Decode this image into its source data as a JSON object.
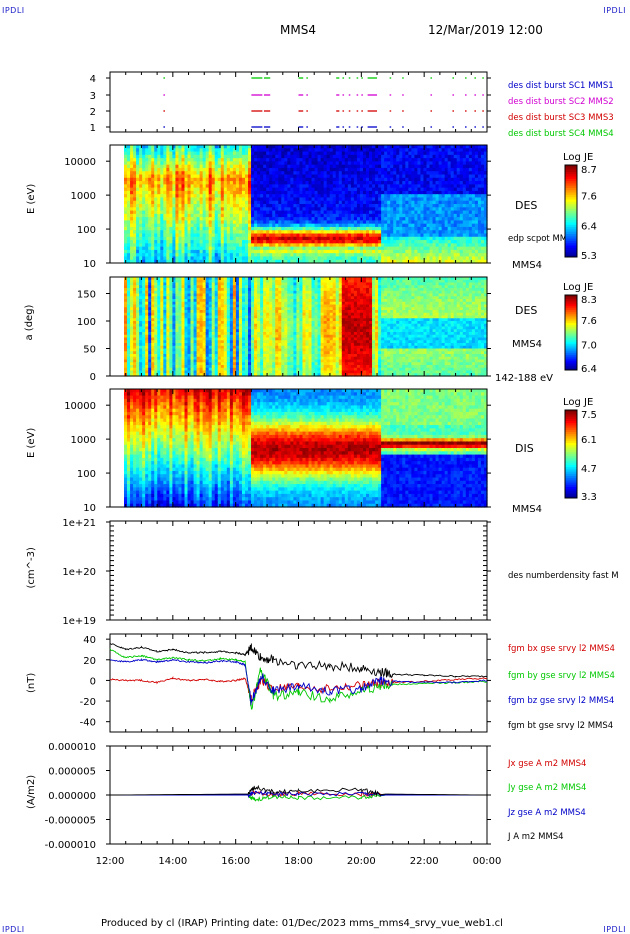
{
  "corners": {
    "tl": "IPDLI",
    "tr": "IPDLI",
    "bl": "IPDLI",
    "br": "IPDLI"
  },
  "header": {
    "spacecraft": "MMS4",
    "datetime": "12/Mar/2019 12:00"
  },
  "footer": "Produced by cl (IRAP)   Printing date: 01/Dec/2023   mms_mms4_srvy_vue_web1.cl",
  "colors": {
    "blue": "#0000c8",
    "magenta": "#d200d2",
    "red": "#d20000",
    "green": "#00c800",
    "black": "#000000"
  },
  "chart_data": [
    {
      "type": "table",
      "name": "burst-availability",
      "y_ticks": [
        "1",
        "2",
        "3",
        "4"
      ],
      "legend": [
        "des dist burst SC1 MMS1",
        "des dist burst SC2 MMS2",
        "des dist burst SC3 MMS3",
        "des dist burst SC4 MMS4"
      ],
      "legend_colors": [
        "#0000c8",
        "#d200d2",
        "#d20000",
        "#00c800"
      ],
      "burst_intervals_hours": [
        [
          13.7,
          13.75
        ],
        [
          16.5,
          16.85
        ],
        [
          16.9,
          17.1
        ],
        [
          18.0,
          18.15
        ],
        [
          18.25,
          18.3
        ],
        [
          19.2,
          19.3
        ],
        [
          19.4,
          19.45
        ],
        [
          19.6,
          19.65
        ],
        [
          19.85,
          19.9
        ],
        [
          20.0,
          20.05
        ],
        [
          20.2,
          20.5
        ],
        [
          20.9,
          20.95
        ],
        [
          21.3,
          21.35
        ],
        [
          22.2,
          22.25
        ],
        [
          22.9,
          22.95
        ],
        [
          23.3,
          23.35
        ],
        [
          23.6,
          23.65
        ],
        [
          23.85,
          23.9
        ]
      ]
    },
    {
      "type": "heatmap",
      "name": "des-energy-spectrogram",
      "ylabel": "E (eV)",
      "y_scale": "log",
      "ylim": [
        10,
        30000
      ],
      "y_ticks": [
        "10",
        "100",
        "1000",
        "10000"
      ],
      "right_label": "DES",
      "right_note": "edp scpot MMS4",
      "bottom_right": "MMS4",
      "colorbar": {
        "title": "Log JE",
        "max": "8.7",
        "ticks": [
          "7.6",
          "6.4"
        ],
        "min": "5.3"
      }
    },
    {
      "type": "heatmap",
      "name": "des-pitch-angle",
      "ylabel": "a (deg)",
      "ylim": [
        0,
        180
      ],
      "y_ticks": [
        "0",
        "50",
        "100",
        "150"
      ],
      "right_label": "DES",
      "right_sc": "MMS4",
      "energy_range": "142-188 eV",
      "colorbar": {
        "title": "Log JE",
        "max": "8.3",
        "ticks": [
          "7.6",
          "7.0"
        ],
        "min": "6.4"
      }
    },
    {
      "type": "heatmap",
      "name": "dis-energy-spectrogram",
      "ylabel": "E (eV)",
      "y_scale": "log",
      "ylim": [
        10,
        30000
      ],
      "y_ticks": [
        "10",
        "100",
        "1000",
        "10000"
      ],
      "right_label": "DIS",
      "bottom_right": "MMS4",
      "colorbar": {
        "title": "Log JE",
        "max": "7.5",
        "ticks": [
          "6.1",
          "4.7"
        ],
        "min": "3.3"
      }
    },
    {
      "type": "line",
      "name": "number-density",
      "ylabel": "(cm^-3)",
      "y_scale": "log",
      "y_ticks": [
        "1e+19",
        "1e+20",
        "1e+21"
      ],
      "series_labels": [
        "des numberdensity fast M"
      ]
    },
    {
      "type": "line",
      "name": "magnetic-field",
      "ylabel": "(nT)",
      "ylim": [
        -50,
        45
      ],
      "y_ticks": [
        "-40",
        "-20",
        "0",
        "20",
        "40"
      ],
      "series": [
        {
          "name": "fgm bx gse srvy l2 MMS4",
          "color": "#d20000",
          "values": [
            [
              12.0,
              1
            ],
            [
              12.5,
              0
            ],
            [
              13.0,
              0
            ],
            [
              13.5,
              -2
            ],
            [
              14.0,
              2
            ],
            [
              14.5,
              0
            ],
            [
              15.0,
              1
            ],
            [
              15.5,
              -1
            ],
            [
              16.0,
              0
            ],
            [
              16.3,
              2
            ],
            [
              16.5,
              -18
            ],
            [
              16.8,
              0
            ],
            [
              17.2,
              -8
            ],
            [
              18.0,
              -6
            ],
            [
              19.0,
              -8
            ],
            [
              20.0,
              -5
            ],
            [
              20.6,
              -3
            ],
            [
              21.0,
              -2
            ],
            [
              22.0,
              -1
            ],
            [
              23.0,
              1
            ],
            [
              24.0,
              2
            ]
          ]
        },
        {
          "name": "fgm by gse srvy l2 MMS4",
          "color": "#00c800",
          "values": [
            [
              12.0,
              30
            ],
            [
              12.5,
              22
            ],
            [
              13.0,
              24
            ],
            [
              13.5,
              20
            ],
            [
              14.0,
              22
            ],
            [
              14.5,
              20
            ],
            [
              15.0,
              19
            ],
            [
              15.5,
              21
            ],
            [
              16.0,
              20
            ],
            [
              16.3,
              18
            ],
            [
              16.5,
              -28
            ],
            [
              16.8,
              10
            ],
            [
              17.2,
              -15
            ],
            [
              18.0,
              -12
            ],
            [
              19.0,
              -18
            ],
            [
              20.0,
              -10
            ],
            [
              20.6,
              -6
            ],
            [
              21.0,
              -4
            ],
            [
              22.0,
              -3
            ],
            [
              23.0,
              -2
            ],
            [
              24.0,
              -1
            ]
          ]
        },
        {
          "name": "fgm bz gse srvy l2 MMS4",
          "color": "#0000c8",
          "values": [
            [
              12.0,
              20
            ],
            [
              12.5,
              18
            ],
            [
              13.0,
              20
            ],
            [
              13.5,
              18
            ],
            [
              14.0,
              20
            ],
            [
              14.5,
              18
            ],
            [
              15.0,
              17
            ],
            [
              15.5,
              19
            ],
            [
              16.0,
              18
            ],
            [
              16.3,
              15
            ],
            [
              16.5,
              -22
            ],
            [
              16.8,
              5
            ],
            [
              17.2,
              -10
            ],
            [
              18.0,
              -6
            ],
            [
              19.0,
              -10
            ],
            [
              20.0,
              -8
            ],
            [
              20.6,
              0
            ],
            [
              21.0,
              -1
            ],
            [
              22.0,
              -2
            ],
            [
              23.0,
              -2
            ],
            [
              24.0,
              0
            ]
          ]
        },
        {
          "name": "fgm bt gse srvy l2 MMS4",
          "color": "#000000",
          "values": [
            [
              12.0,
              36
            ],
            [
              12.5,
              30
            ],
            [
              13.0,
              32
            ],
            [
              13.5,
              28
            ],
            [
              14.0,
              30
            ],
            [
              14.5,
              27
            ],
            [
              15.0,
              27
            ],
            [
              15.5,
              28
            ],
            [
              16.0,
              27
            ],
            [
              16.3,
              25
            ],
            [
              16.5,
              32
            ],
            [
              16.8,
              22
            ],
            [
              17.2,
              20
            ],
            [
              18.0,
              15
            ],
            [
              19.0,
              14
            ],
            [
              20.0,
              12
            ],
            [
              20.6,
              8
            ],
            [
              21.0,
              6
            ],
            [
              22.0,
              5
            ],
            [
              23.0,
              4
            ],
            [
              24.0,
              4
            ]
          ]
        }
      ]
    },
    {
      "type": "line",
      "name": "current-density",
      "ylabel": "(A/m2)",
      "ylim": [
        -1e-05,
        1e-05
      ],
      "y_ticks": [
        "-0.000010",
        "-0.000005",
        "0.000000",
        "0.000005",
        "0.000010"
      ],
      "series": [
        {
          "name": "Jx gse A m2 MMS4",
          "color": "#d20000",
          "values": [
            [
              12.0,
              0
            ],
            [
              16.4,
              0
            ],
            [
              16.6,
              5e-07
            ],
            [
              17.2,
              0
            ],
            [
              18.0,
              3e-07
            ],
            [
              20.0,
              2e-07
            ],
            [
              20.6,
              0
            ],
            [
              24.0,
              0
            ]
          ]
        },
        {
          "name": "Jy gse A m2 MMS4",
          "color": "#00c800",
          "values": [
            [
              12.0,
              0
            ],
            [
              16.4,
              0
            ],
            [
              16.6,
              -1e-06
            ],
            [
              17.2,
              -3e-07
            ],
            [
              18.0,
              -6e-07
            ],
            [
              20.0,
              -5e-07
            ],
            [
              20.6,
              0
            ],
            [
              24.0,
              0
            ]
          ]
        },
        {
          "name": "Jz gse A m2 MMS4",
          "color": "#0000c8",
          "values": [
            [
              12.0,
              0
            ],
            [
              16.4,
              0
            ],
            [
              16.6,
              4e-07
            ],
            [
              17.2,
              2e-07
            ],
            [
              18.0,
              2e-07
            ],
            [
              20.0,
              3e-07
            ],
            [
              20.6,
              0
            ],
            [
              24.0,
              0
            ]
          ]
        },
        {
          "name": "J A m2 MMS4",
          "color": "#000000",
          "values": [
            [
              12.0,
              0
            ],
            [
              16.4,
              2e-07
            ],
            [
              16.6,
              1.6e-06
            ],
            [
              17.2,
              6e-07
            ],
            [
              18.0,
              8e-07
            ],
            [
              20.0,
              1.1e-06
            ],
            [
              20.6,
              2e-07
            ],
            [
              24.0,
              0
            ]
          ]
        }
      ]
    }
  ],
  "x_axis": {
    "ticks": [
      "12:00",
      "14:00",
      "16:00",
      "18:00",
      "20:00",
      "22:00",
      "00:00"
    ],
    "range_hours": [
      12,
      24
    ]
  }
}
